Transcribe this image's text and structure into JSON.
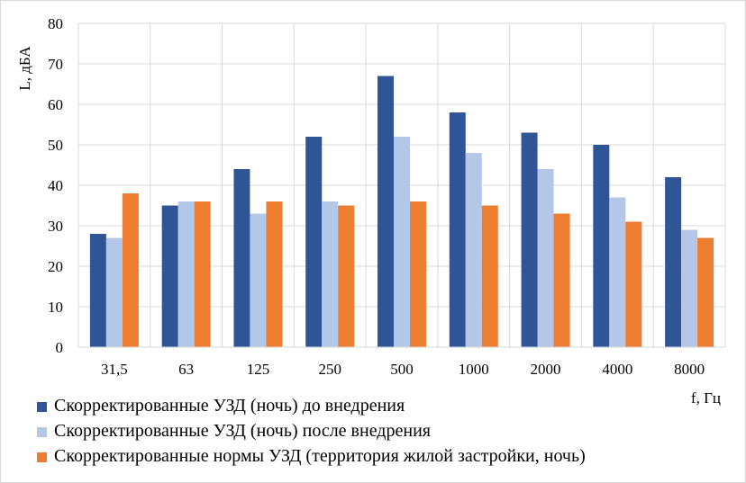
{
  "chart_data": {
    "type": "bar",
    "categories": [
      "31,5",
      "63",
      "125",
      "250",
      "500",
      "1000",
      "2000",
      "4000",
      "8000"
    ],
    "series": [
      {
        "name": "Скорректированные УЗД (ночь) до внедрения",
        "color": "#2f5597",
        "values": [
          28,
          35,
          44,
          52,
          67,
          58,
          53,
          50,
          42
        ]
      },
      {
        "name": "Скорректированные УЗД (ночь) после внедрения",
        "color": "#b4c7e7",
        "values": [
          27,
          36,
          33,
          36,
          52,
          48,
          44,
          37,
          29
        ]
      },
      {
        "name": "Скорректированные нормы УЗД (территория жилой застройки, ночь)",
        "color": "#ed7d31",
        "values": [
          38,
          36,
          36,
          35,
          36,
          35,
          33,
          31,
          27
        ]
      }
    ],
    "xlabel": "f, Гц",
    "ylabel": "L, дБА",
    "ylim": [
      0,
      80
    ],
    "yticks": [
      0,
      10,
      20,
      30,
      40,
      50,
      60,
      70,
      80
    ],
    "grid": true,
    "legend_position": "bottom-left"
  }
}
